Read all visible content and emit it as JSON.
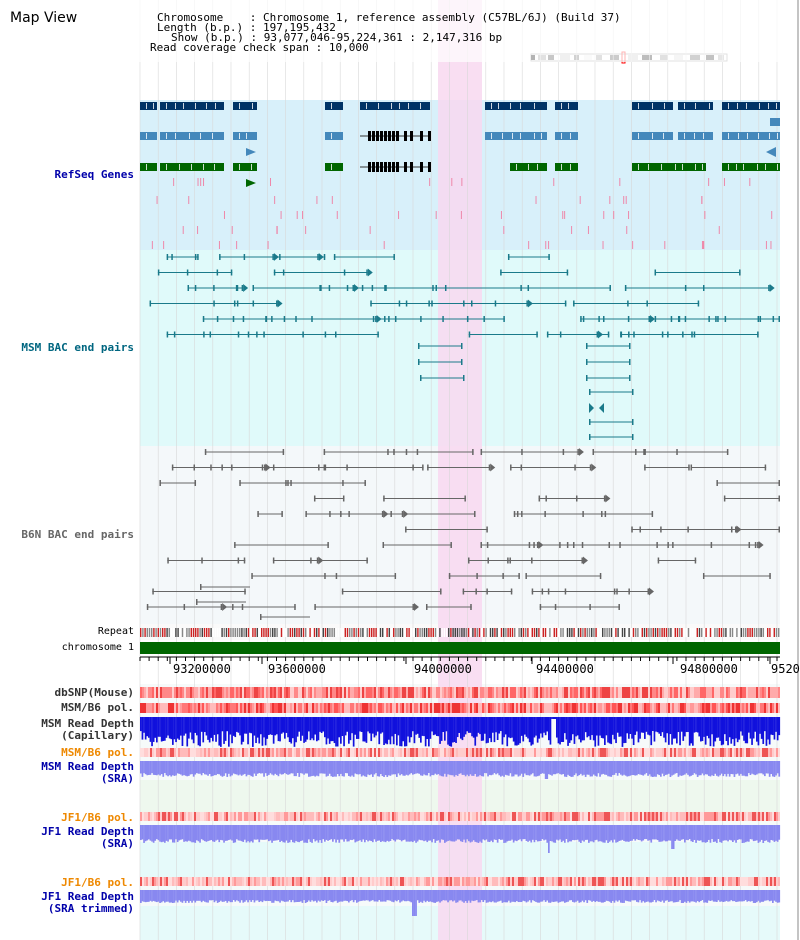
{
  "view": {
    "title": "Map View",
    "info": {
      "chromosome_key": "Chromosome",
      "chromosome_val": "Chromosome 1, reference assembly (C57BL/6J) (Build 37)",
      "length_key": "Length (b.p.)",
      "length_val": "197,195,432",
      "show_key": "Show (b.p.)",
      "show_val": "93,077,046-95,224,361 : 2,147,316 bp",
      "coverage_key": "Read coverage check span",
      "coverage_val": "10,000"
    }
  },
  "tracks": {
    "refseq": "RefSeq Genes",
    "msm_bac": "MSM BAC end pairs",
    "b6n_bac": "B6N BAC end pairs",
    "repeat": "Repeat",
    "chromosome": "chromosome 1",
    "dbsnp": "dbSNP(Mouse)",
    "msm_b6_pol_1": "MSM/B6 pol.",
    "msm_read_depth_cap_l1": "MSM Read Depth",
    "msm_read_depth_cap_l2": "(Capillary)",
    "msm_b6_pol_2": "MSM/B6 pol.",
    "msm_read_depth_sra_l1": "MSM Read Depth",
    "msm_read_depth_sra_l2": "(SRA)",
    "jf1_b6_pol_1": "JF1/B6 pol.",
    "jf1_read_depth_sra_l1": "JF1 Read Depth",
    "jf1_read_depth_sra_l2": "(SRA)",
    "jf1_b6_pol_2": "JF1/B6 pol.",
    "jf1_read_depth_trim_l1": "JF1 Read Depth",
    "jf1_read_depth_trim_l2": "(SRA trimmed)"
  },
  "axis": {
    "ticks": [
      "93200000",
      "93600000",
      "94000000",
      "94400000",
      "94800000",
      "9520"
    ]
  },
  "colors": {
    "refseq_dark": "#003366",
    "refseq_mid": "#4488bb",
    "refseq_green": "#006600",
    "refseq_bg": "#d8f0fa",
    "msm_bg": "#e0fafa",
    "b6n_bg": "#f4f8fa",
    "highlight": "#f8d8f0",
    "label_blue": "#0000aa",
    "label_msm": "#006680",
    "label_b6n": "#666666",
    "label_orange": "#ee8800",
    "chromosome_green": "#006600"
  }
}
